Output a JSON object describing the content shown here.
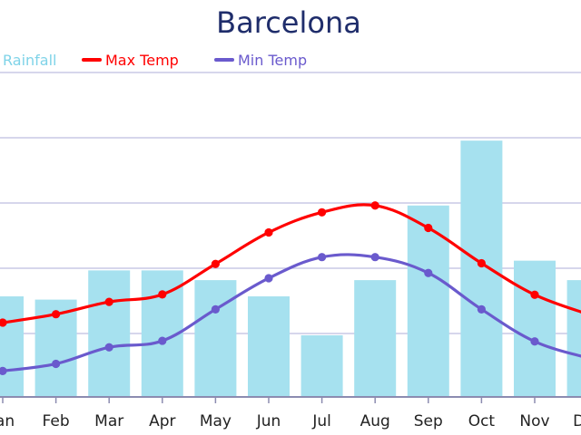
{
  "chart_data": {
    "type": "bar",
    "title": "Barcelona",
    "categories": [
      "Jan",
      "Feb",
      "Mar",
      "Apr",
      "May",
      "Jun",
      "Jul",
      "Aug",
      "Sep",
      "Oct",
      "Nov",
      "Dec"
    ],
    "legend_position": "top",
    "grid": true,
    "y_fraction_range": [
      0,
      1
    ],
    "series": [
      {
        "name": "Rainfall",
        "type": "bar",
        "color": "#a6e1ef",
        "values_fraction_of_plot": [
          0.31,
          0.3,
          0.39,
          0.39,
          0.36,
          0.31,
          0.19,
          0.36,
          0.59,
          0.79,
          0.42,
          0.36
        ]
      },
      {
        "name": "Max Temp",
        "type": "line",
        "color": "#ff0000",
        "values_fraction_of_plot": [
          0.229,
          0.255,
          0.293,
          0.316,
          0.41,
          0.507,
          0.569,
          0.59,
          0.521,
          0.412,
          0.315,
          0.255
        ]
      },
      {
        "name": "Min Temp",
        "type": "line",
        "color": "#6a5acd",
        "values_fraction_of_plot": [
          0.08,
          0.102,
          0.153,
          0.173,
          0.27,
          0.366,
          0.431,
          0.431,
          0.382,
          0.27,
          0.171,
          0.12
        ]
      }
    ]
  },
  "colors": {
    "title": "#1f2d6b",
    "grid": "#c8c8e6",
    "axis": "#8c8cb0",
    "tick_label": "#222222"
  }
}
